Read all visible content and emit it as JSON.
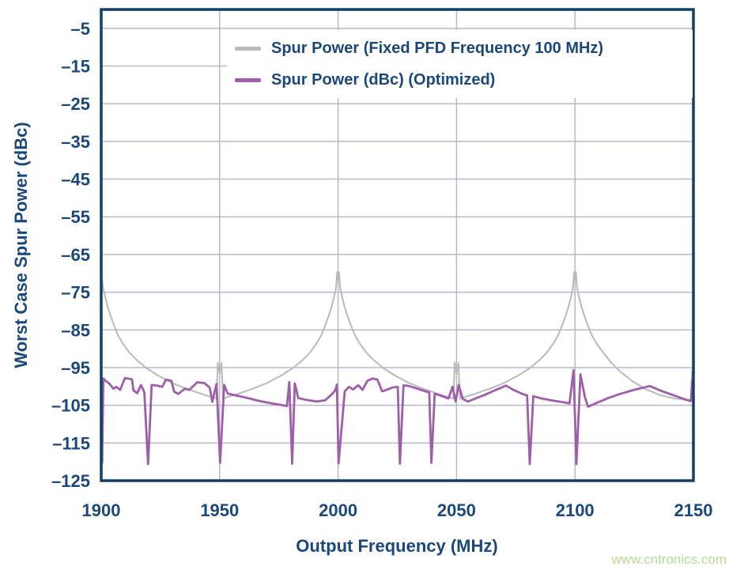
{
  "watermark": "www.cntronics.com",
  "colors": {
    "axis_frame": "#123f66",
    "tick_text": "#1b4878",
    "gridline": "#b7b9ca",
    "series_fixed": "#b9babc",
    "series_optimized": "#9d5fa7",
    "watermark": "#b6db97",
    "background": "#ffffff"
  },
  "chart_data": {
    "type": "line",
    "title": "",
    "xlabel": "Output Frequency (MHz)",
    "ylabel": "Worst Case Spur Power (dBc)",
    "xlim": [
      1900,
      2150
    ],
    "ylim": [
      -125,
      0
    ],
    "grid": true,
    "legend_position": "top-inside",
    "x_ticks": [
      1900,
      1950,
      2000,
      2050,
      2100,
      2150
    ],
    "x_tick_labels": [
      "1900",
      "1950",
      "2000",
      "2050",
      "2100",
      "2150"
    ],
    "y_ticks": [
      -5,
      -15,
      -25,
      -35,
      -45,
      -55,
      -65,
      -75,
      -85,
      -95,
      -105,
      -115,
      -125
    ],
    "y_tick_labels": [
      "–5",
      "–15",
      "–25",
      "–35",
      "–45",
      "–55",
      "–65",
      "–75",
      "–85",
      "–95",
      "–105",
      "–115",
      "–125"
    ],
    "series": [
      {
        "name": "Spur Power (Fixed PFD Frequency 100 MHz)",
        "color": "#b9babc",
        "stroke_width": 2,
        "points": [
          [
            1900,
            -69.7
          ],
          [
            1900.4,
            -71.8
          ],
          [
            1900.9,
            -74
          ],
          [
            1901.8,
            -76.5
          ],
          [
            1902.8,
            -79
          ],
          [
            1904,
            -81.4
          ],
          [
            1905.3,
            -83.6
          ],
          [
            1907,
            -86.3
          ],
          [
            1909,
            -88.5
          ],
          [
            1912,
            -91.1
          ],
          [
            1915,
            -93
          ],
          [
            1919,
            -95.1
          ],
          [
            1924,
            -97.1
          ],
          [
            1930,
            -99.1
          ],
          [
            1936,
            -100.6
          ],
          [
            1942,
            -101.9
          ],
          [
            1947,
            -102.9
          ],
          [
            1948.7,
            -103.2
          ],
          [
            1949.2,
            -93.7
          ],
          [
            1950,
            -96.8
          ],
          [
            1950.8,
            -93.7
          ],
          [
            1951.4,
            -103.2
          ],
          [
            1953,
            -102.9
          ],
          [
            1958,
            -101.9
          ],
          [
            1964,
            -100.6
          ],
          [
            1970,
            -99.1
          ],
          [
            1976,
            -97.1
          ],
          [
            1981,
            -95.1
          ],
          [
            1985,
            -93
          ],
          [
            1988,
            -91.1
          ],
          [
            1991,
            -88.5
          ],
          [
            1993,
            -86.3
          ],
          [
            1994.7,
            -83.6
          ],
          [
            1996,
            -81.4
          ],
          [
            1997.2,
            -79
          ],
          [
            1998.2,
            -76.5
          ],
          [
            1999.1,
            -74
          ],
          [
            1999.6,
            -69.7
          ],
          [
            2000,
            -71.8
          ],
          [
            2000.4,
            -69.7
          ],
          [
            2000.9,
            -74
          ],
          [
            2001.8,
            -76.5
          ],
          [
            2002.8,
            -79
          ],
          [
            2004,
            -81.4
          ],
          [
            2005.3,
            -83.6
          ],
          [
            2007,
            -86.3
          ],
          [
            2009,
            -88.5
          ],
          [
            2012,
            -91.1
          ],
          [
            2015,
            -93
          ],
          [
            2019,
            -95.1
          ],
          [
            2024,
            -97.1
          ],
          [
            2030,
            -99.1
          ],
          [
            2036,
            -100.6
          ],
          [
            2042,
            -101.9
          ],
          [
            2047,
            -102.9
          ],
          [
            2048.7,
            -103.2
          ],
          [
            2049.2,
            -93.7
          ],
          [
            2050,
            -96.8
          ],
          [
            2050.8,
            -93.7
          ],
          [
            2051.4,
            -103.2
          ],
          [
            2053,
            -102.9
          ],
          [
            2058,
            -101.9
          ],
          [
            2064,
            -100.6
          ],
          [
            2070,
            -99.1
          ],
          [
            2076,
            -97.1
          ],
          [
            2081,
            -95.1
          ],
          [
            2085,
            -93
          ],
          [
            2088,
            -91.1
          ],
          [
            2091,
            -88.5
          ],
          [
            2093,
            -86.3
          ],
          [
            2094.7,
            -83.6
          ],
          [
            2096,
            -81.4
          ],
          [
            2097.2,
            -79
          ],
          [
            2098.2,
            -76.5
          ],
          [
            2099.1,
            -74
          ],
          [
            2099.6,
            -69.7
          ],
          [
            2100,
            -71.8
          ],
          [
            2100.4,
            -69.7
          ],
          [
            2100.9,
            -74
          ],
          [
            2101.8,
            -76.5
          ],
          [
            2102.8,
            -79
          ],
          [
            2104,
            -81.4
          ],
          [
            2105.3,
            -83.6
          ],
          [
            2107,
            -86.3
          ],
          [
            2109,
            -88.5
          ],
          [
            2112,
            -91.1
          ],
          [
            2115,
            -93.5
          ],
          [
            2119,
            -96
          ],
          [
            2124,
            -98.5
          ],
          [
            2130,
            -100.8
          ],
          [
            2136,
            -102.3
          ],
          [
            2142,
            -103.2
          ],
          [
            2147,
            -103.6
          ],
          [
            2148.8,
            -103.7
          ],
          [
            2149.4,
            -96.5
          ],
          [
            2150,
            -94.3
          ]
        ]
      },
      {
        "name": "Spur Power (dBc) (Optimized)",
        "color": "#9d5fa7",
        "stroke_width": 2.8,
        "points": [
          [
            1900,
            -97.8
          ],
          [
            1900.4,
            -120.3
          ],
          [
            1900.9,
            -97.9
          ],
          [
            1902,
            -98.6
          ],
          [
            1903.4,
            -99.2
          ],
          [
            1905.1,
            -100.6
          ],
          [
            1906.4,
            -100.1
          ],
          [
            1908,
            -100.9
          ],
          [
            1910,
            -97.8
          ],
          [
            1913,
            -98.1
          ],
          [
            1913.6,
            -101
          ],
          [
            1915.2,
            -101.8
          ],
          [
            1916.8,
            -99.6
          ],
          [
            1918.2,
            -101.5
          ],
          [
            1919.8,
            -120.6
          ],
          [
            1921.3,
            -99.6
          ],
          [
            1923.5,
            -99.8
          ],
          [
            1925.8,
            -100.1
          ],
          [
            1927.3,
            -98.2
          ],
          [
            1929.6,
            -98.5
          ],
          [
            1930.8,
            -101.4
          ],
          [
            1932.5,
            -102
          ],
          [
            1935.3,
            -100.6
          ],
          [
            1937.2,
            -100.9
          ],
          [
            1940.5,
            -98.9
          ],
          [
            1943.5,
            -99.1
          ],
          [
            1945.8,
            -100.3
          ],
          [
            1946.9,
            -104.1
          ],
          [
            1948.7,
            -99.3
          ],
          [
            1950.2,
            -120.3
          ],
          [
            1951.9,
            -99.6
          ],
          [
            1953.4,
            -101.9
          ],
          [
            1957,
            -102.4
          ],
          [
            1962,
            -103.1
          ],
          [
            1967,
            -103.9
          ],
          [
            1972,
            -104.5
          ],
          [
            1976,
            -104.9
          ],
          [
            1978.4,
            -105.2
          ],
          [
            1979.4,
            -98.8
          ],
          [
            1980.6,
            -120.5
          ],
          [
            1981.7,
            -99.2
          ],
          [
            1983.2,
            -103.1
          ],
          [
            1987,
            -103.6
          ],
          [
            1991,
            -104
          ],
          [
            1994.5,
            -103.7
          ],
          [
            1997.5,
            -102
          ],
          [
            1998.8,
            -101
          ],
          [
            1999.5,
            -99.5
          ],
          [
            2000.2,
            -120.4
          ],
          [
            2002.8,
            -101.3
          ],
          [
            2004.6,
            -100.1
          ],
          [
            2006.3,
            -100.8
          ],
          [
            2008.5,
            -99.7
          ],
          [
            2010.3,
            -100.9
          ],
          [
            2012.4,
            -98.5
          ],
          [
            2014.5,
            -97.9
          ],
          [
            2016.6,
            -98.2
          ],
          [
            2018.6,
            -101.3
          ],
          [
            2020.5,
            -100.9
          ],
          [
            2023,
            -100.3
          ],
          [
            2025.2,
            -100.1
          ],
          [
            2026.1,
            -120.5
          ],
          [
            2027.6,
            -99.7
          ],
          [
            2030,
            -99.9
          ],
          [
            2033,
            -100.5
          ],
          [
            2036.3,
            -101.2
          ],
          [
            2038.5,
            -101.6
          ],
          [
            2039.4,
            -120.3
          ],
          [
            2040.8,
            -101.9
          ],
          [
            2043.5,
            -102.5
          ],
          [
            2046.6,
            -103.2
          ],
          [
            2048.3,
            -100.1
          ],
          [
            2049.6,
            -104
          ],
          [
            2050.9,
            -99.6
          ],
          [
            2052.6,
            -103.3
          ],
          [
            2054.8,
            -104
          ],
          [
            2058,
            -103.2
          ],
          [
            2062,
            -102.2
          ],
          [
            2066,
            -101.1
          ],
          [
            2070.9,
            -99.8
          ],
          [
            2074,
            -100.9
          ],
          [
            2077.5,
            -101.9
          ],
          [
            2079.8,
            -102.4
          ],
          [
            2080.9,
            -120.6
          ],
          [
            2082.4,
            -102.6
          ],
          [
            2086,
            -103.2
          ],
          [
            2090,
            -103.7
          ],
          [
            2094,
            -104.1
          ],
          [
            2097.7,
            -104.5
          ],
          [
            2099.4,
            -95.7
          ],
          [
            2100.6,
            -120.6
          ],
          [
            2102.3,
            -96.8
          ],
          [
            2104.2,
            -102.9
          ],
          [
            2105.5,
            -105.4
          ],
          [
            2109,
            -104.4
          ],
          [
            2114,
            -103.1
          ],
          [
            2119,
            -102
          ],
          [
            2125,
            -100.9
          ],
          [
            2131.6,
            -99.9
          ],
          [
            2136,
            -101.1
          ],
          [
            2140.5,
            -102.1
          ],
          [
            2145,
            -103.1
          ],
          [
            2148.9,
            -103.9
          ],
          [
            2149.6,
            -98.3
          ],
          [
            2150,
            -98.2
          ]
        ]
      }
    ]
  }
}
